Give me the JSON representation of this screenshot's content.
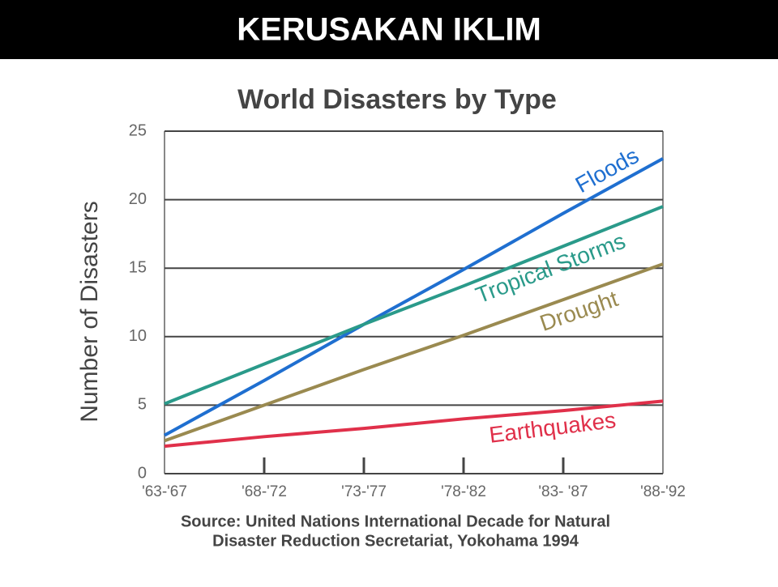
{
  "header": {
    "title": "KERUSAKAN  IKLIM"
  },
  "chart_data": {
    "type": "line",
    "title": "World Disasters by Type",
    "y_label": "Number of Disasters",
    "source_lines": [
      "Source: United Nations International Decade for Natural",
      "Disaster Reduction Secretariat, Yokohama 1994"
    ],
    "categories": [
      "'63-'67",
      "'68-'72",
      "'73-'77",
      "'78-'82",
      "'83- '87",
      "'88-'92"
    ],
    "series": [
      {
        "name": "Floods",
        "color": "#1f6fd0",
        "values": [
          2.8,
          6.8,
          10.9,
          14.9,
          19.0,
          23.0
        ]
      },
      {
        "name": "Tropical Storms",
        "color": "#2a9a8a",
        "values": [
          5.1,
          8.0,
          10.9,
          13.7,
          16.6,
          19.5
        ]
      },
      {
        "name": "Drought",
        "color": "#9a8a50",
        "values": [
          2.4,
          5.0,
          7.6,
          10.1,
          12.7,
          15.3
        ]
      },
      {
        "name": "Earthquakes",
        "color": "#e0304a",
        "values": [
          2.0,
          2.7,
          3.3,
          4.0,
          4.6,
          5.3
        ]
      }
    ],
    "ylim": [
      0,
      25
    ],
    "yticks": [
      0,
      5,
      10,
      15,
      20,
      25
    ],
    "grid": true
  }
}
